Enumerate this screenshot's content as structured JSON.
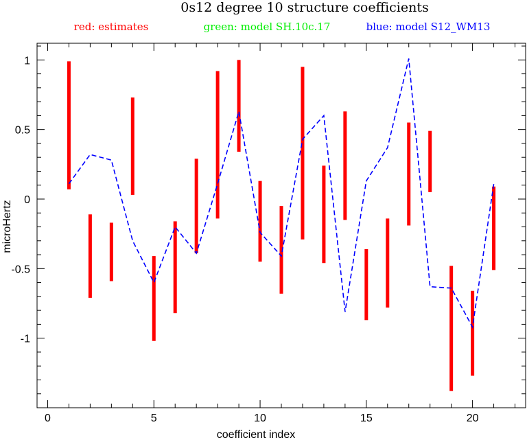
{
  "chart_data": {
    "type": "line",
    "title": "0s12 degree 10 structure coefficients",
    "legend": [
      {
        "text": "red: estimates",
        "color": "#ff0000"
      },
      {
        "text": "green: model SH.10c.17",
        "color": "#00ee00"
      },
      {
        "text": "blue: model S12_WM13",
        "color": "#0000ff"
      }
    ],
    "xlabel": "coefficient index",
    "ylabel": "microHertz",
    "xlim": [
      -0.5,
      22.5
    ],
    "ylim": [
      -1.5,
      1.12
    ],
    "xticks": [
      0,
      5,
      10,
      15,
      20
    ],
    "xtick_labels": [
      "0",
      "5",
      "10",
      "15",
      "20"
    ],
    "yticks": [
      1,
      0.5,
      0,
      -0.5,
      -1
    ],
    "ytick_labels": [
      "1",
      "0.5",
      "0",
      "-0.5",
      "-1"
    ],
    "grid": false,
    "series": [
      {
        "name": "red: estimates",
        "kind": "error_bar",
        "color": "#ff0000",
        "x": [
          1,
          2,
          3,
          4,
          5,
          6,
          7,
          8,
          9,
          10,
          11,
          12,
          13,
          14,
          15,
          16,
          17,
          18,
          19,
          20,
          21
        ],
        "low": [
          0.07,
          -0.71,
          -0.59,
          0.03,
          -1.02,
          -0.82,
          -0.39,
          -0.14,
          0.34,
          -0.45,
          -0.68,
          -0.29,
          -0.46,
          -0.15,
          -0.87,
          -0.78,
          -0.19,
          0.05,
          -1.38,
          -1.27,
          -0.51
        ],
        "high": [
          0.99,
          -0.11,
          -0.17,
          0.73,
          -0.41,
          -0.16,
          0.29,
          0.92,
          1.0,
          0.13,
          -0.05,
          0.95,
          0.24,
          0.63,
          -0.36,
          -0.14,
          0.55,
          0.49,
          -0.48,
          -0.66,
          0.09
        ]
      },
      {
        "name": "blue: model S12_WM13",
        "kind": "dashed_line",
        "color": "#0000ff",
        "x": [
          1,
          2,
          3,
          4,
          5,
          6,
          7,
          8,
          9,
          10,
          11,
          12,
          13,
          14,
          15,
          16,
          17,
          18,
          19,
          20,
          21
        ],
        "values": [
          0.11,
          0.32,
          0.28,
          -0.3,
          -0.6,
          -0.2,
          -0.39,
          0.11,
          0.63,
          -0.24,
          -0.41,
          0.43,
          0.6,
          -0.81,
          0.13,
          0.37,
          1.01,
          -0.63,
          -0.64,
          -0.92,
          0.11
        ]
      }
    ]
  }
}
